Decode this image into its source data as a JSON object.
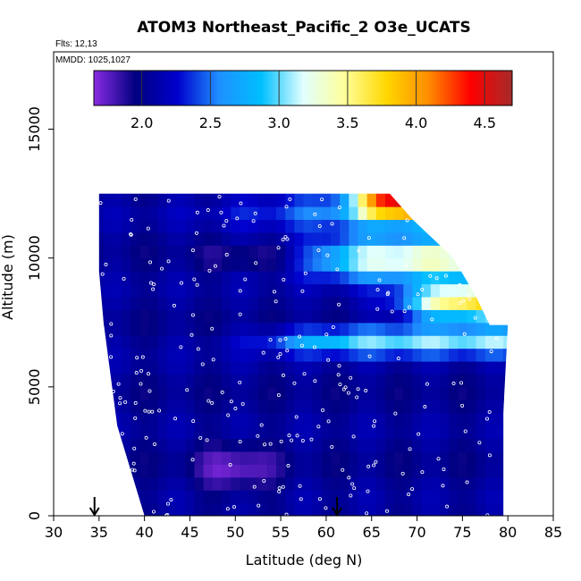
{
  "chart_data": {
    "type": "heatmap",
    "title": "ATOM3 Northeast_Pacific_2 O3e_UCATS",
    "flights_label": "Flts: 12,13",
    "dates_label": "MMDD: 1025,1027",
    "xlabel": "Latitude (deg N)",
    "ylabel": "Altitude (m)",
    "xlim": [
      30,
      85
    ],
    "ylim": [
      0,
      18000
    ],
    "x_ticks": [
      30,
      35,
      40,
      45,
      50,
      55,
      60,
      65,
      70,
      75,
      80,
      85
    ],
    "y_ticks": [
      0,
      5000,
      10000,
      15000
    ],
    "colorbar": {
      "range": [
        1.65,
        4.7
      ],
      "ticks": [
        2.0,
        2.5,
        3.0,
        3.5,
        4.0,
        4.5
      ],
      "tick_labels": [
        "2.0",
        "2.5",
        "3.0",
        "3.5",
        "4.0",
        "4.5"
      ],
      "colors": [
        "#8a2be2",
        "#000080",
        "#0000cd",
        "#1e90ff",
        "#00bfff",
        "#e0ffff",
        "#ffff99",
        "#ffd700",
        "#ff8c00",
        "#ff0000",
        "#a52a2a"
      ]
    },
    "domain_lower_left": [
      35,
      9500
    ],
    "domain_bottom_left": [
      40,
      0
    ],
    "domain_bottom_right": [
      79.5,
      0
    ],
    "domain_upper_right": [
      80,
      7400
    ],
    "domain_top": [
      35,
      12500
    ],
    "profile_markers_lat": [
      34.5,
      61.2
    ],
    "grid": false,
    "legend": "colorbar top inside plot"
  }
}
